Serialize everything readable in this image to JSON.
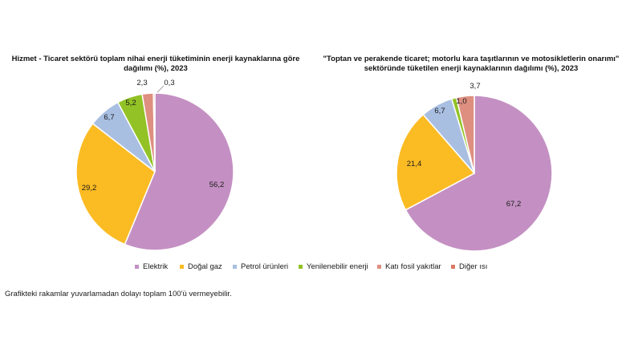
{
  "chart_data": [
    {
      "type": "pie",
      "title": "Hizmet - Ticaret sektörü toplam nihai enerji tüketiminin enerji kaynaklarına göre dağılımı (%), 2023",
      "categories": [
        "Elektrik",
        "Doğal gaz",
        "Petrol ürünleri",
        "Yenilenebilir enerji",
        "Katı fosil yakıtlar",
        "Diğer ısı"
      ],
      "values": [
        56.2,
        29.2,
        6.7,
        5.2,
        2.3,
        0.3
      ],
      "labels": [
        "56,2",
        "29,2",
        "6,7",
        "5,2",
        "2,3",
        "0,3"
      ]
    },
    {
      "type": "pie",
      "title": "\"Toptan ve perakende ticaret; motorlu kara taşıtlarının ve motosikletlerin onarımı\" sektöründe tüketilen enerji kaynaklarının dağılımı (%), 2023",
      "categories": [
        "Elektrik",
        "Doğal gaz",
        "Petrol ürünleri",
        "Yenilenebilir enerji",
        "Katı fosil yakıtlar",
        "Diğer ısı"
      ],
      "values": [
        67.2,
        21.4,
        6.7,
        1.0,
        3.7,
        0.0
      ],
      "labels": [
        "67,2",
        "21,4",
        "6,7",
        "1,0",
        "3,7",
        ""
      ]
    }
  ],
  "legend": {
    "items": [
      {
        "label": "Elektrik",
        "color": "#c490c3"
      },
      {
        "label": "Doğal gaz",
        "color": "#fbbb23"
      },
      {
        "label": "Petrol ürünleri",
        "color": "#a9bfe2"
      },
      {
        "label": "Yenilenebilir enerji",
        "color": "#92c225"
      },
      {
        "label": "Katı fosil yakıtlar",
        "color": "#de8f80"
      },
      {
        "label": "Diğer ısı",
        "color": "#d97a62"
      }
    ]
  },
  "footnote": "Grafikteki rakamlar yuvarlamadan dolayı toplam 100'ü vermeyebilir."
}
